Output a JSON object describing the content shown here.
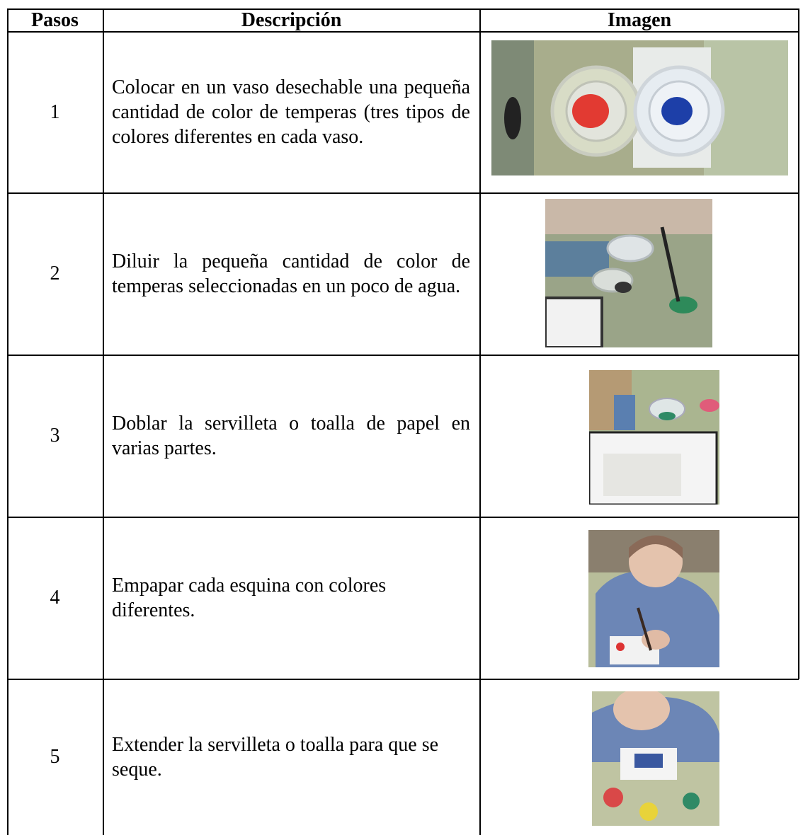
{
  "table": {
    "headers": [
      "Pasos",
      "Descripción",
      "Imagen"
    ],
    "rows": [
      [
        "1",
        "Colocar en un vaso desechable una pequeña cantidad de color de temperas (tres tipos de colores diferentes en cada vaso."
      ],
      [
        "2",
        "Diluir la pequeña cantidad de color de temperas seleccionadas en un poco de agua."
      ],
      [
        "3",
        "Doblar la servilleta o toalla de papel en varias partes."
      ],
      [
        "4",
        "Empapar cada esquina con colores diferentes."
      ],
      [
        "5",
        "Extender la servilleta o toalla para que se seque."
      ]
    ]
  }
}
